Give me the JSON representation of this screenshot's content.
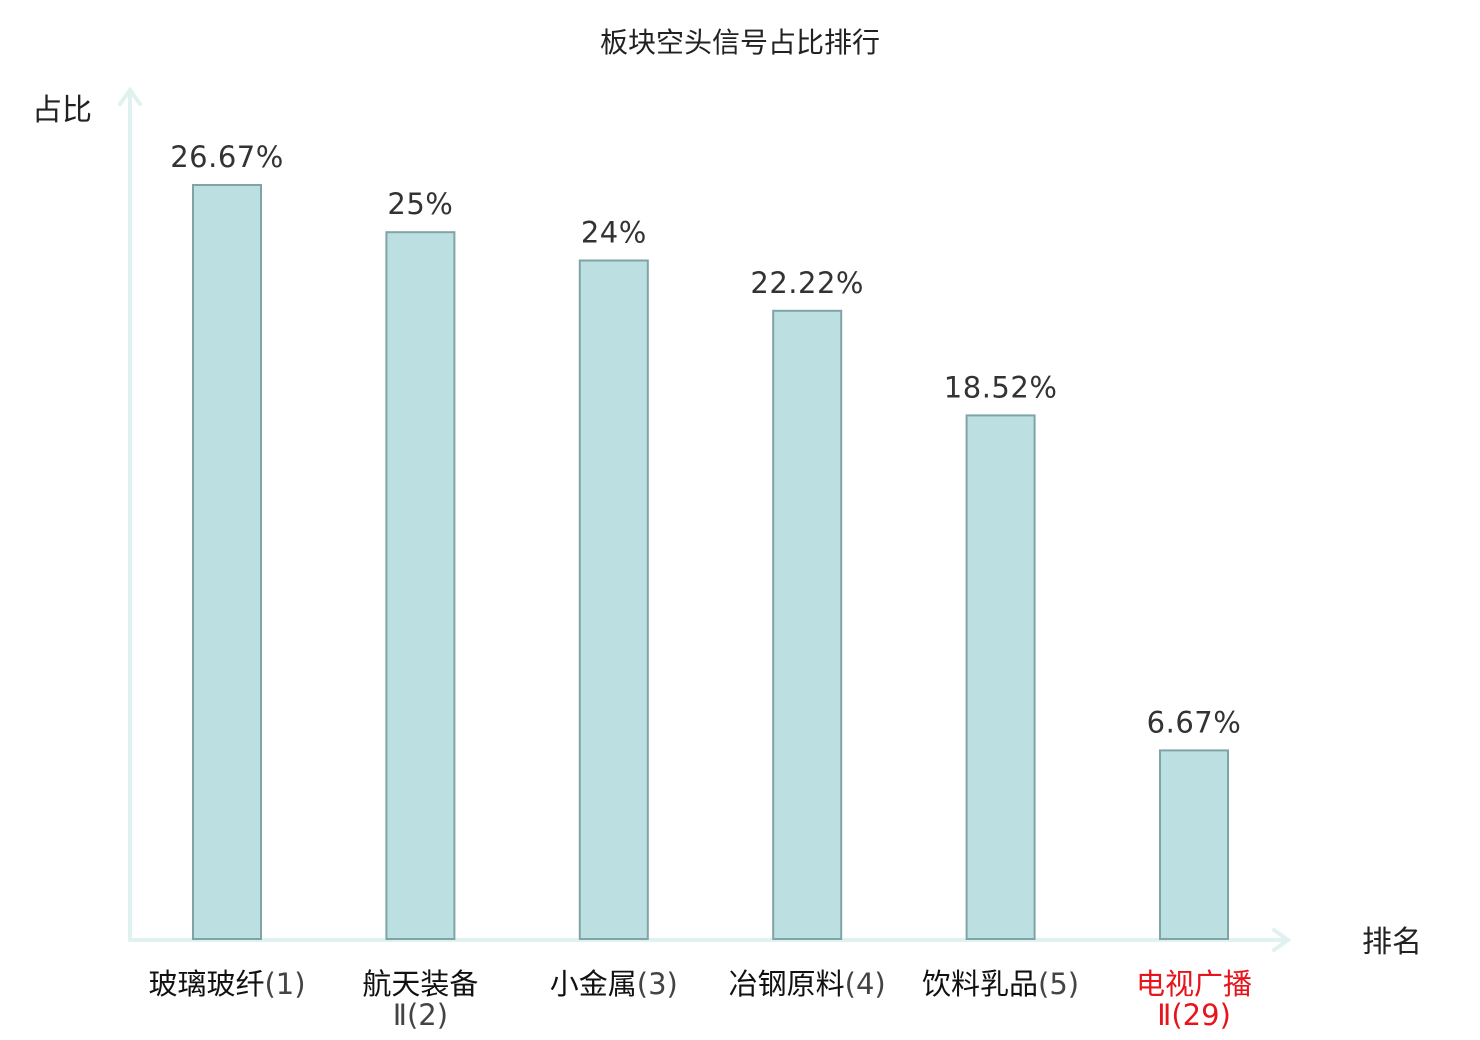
{
  "chart_data": {
    "type": "bar",
    "title": "板块空头信号占比排行",
    "ylabel": "占比",
    "xlabel": "排名",
    "categories": [
      {
        "name": "玻璃玻纤",
        "rank": "(1)",
        "highlight": false
      },
      {
        "name": "航天装备",
        "rank": "Ⅱ(2)",
        "highlight": false
      },
      {
        "name": "小金属",
        "rank": "(3)",
        "highlight": false
      },
      {
        "name": "冶钢原料",
        "rank": "(4)",
        "highlight": false
      },
      {
        "name": "饮料乳品",
        "rank": "(5)",
        "highlight": false
      },
      {
        "name": "电视广播",
        "rank": "Ⅱ(29)",
        "highlight": true
      }
    ],
    "values": [
      26.67,
      25,
      24,
      22.22,
      18.52,
      6.67
    ],
    "value_labels": [
      "26.67%",
      "25%",
      "24%",
      "22.22%",
      "18.52%",
      "6.67%"
    ],
    "unit": "%",
    "ylim": [
      0,
      26.67
    ],
    "grid": false,
    "legend": "none",
    "colors": {
      "bar_fill": "#bce0e2",
      "bar_stroke": "#7fa3a6",
      "axis": "#dff2ef",
      "text": "#222222",
      "highlight": "#e8141c"
    }
  }
}
